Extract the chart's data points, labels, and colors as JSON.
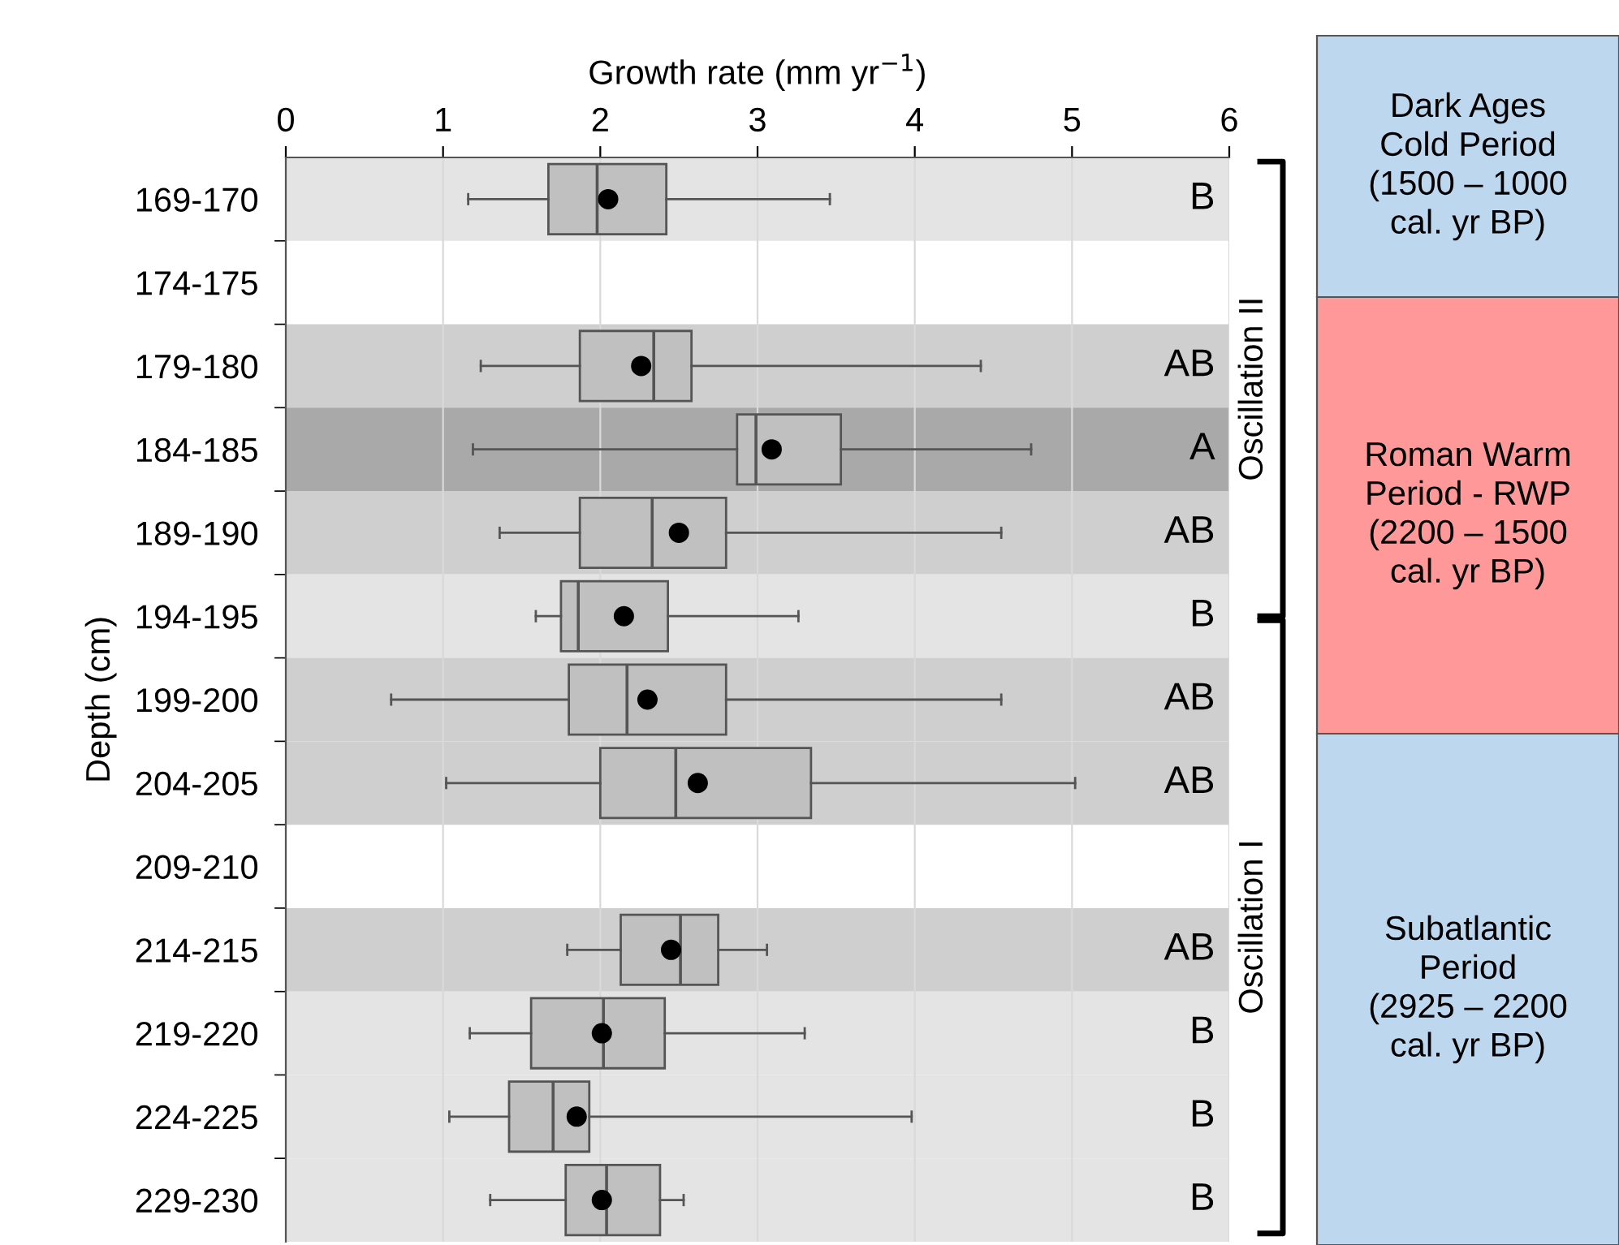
{
  "chart_data": {
    "type": "box",
    "xlabel": "Growth rate (mm yr$^{−1}$)",
    "ylabel": "Depth (cm)",
    "orientation": "horizontal",
    "categories": [
      "169-170",
      "174-175",
      "179-180",
      "184-185",
      "189-190",
      "194-195",
      "199-200",
      "204-205",
      "209-210",
      "214-215",
      "219-220",
      "224-225",
      "229-230"
    ],
    "xlim": [
      0,
      6
    ],
    "xticks": [
      0,
      1,
      2,
      3,
      4,
      5,
      6
    ],
    "grid": "x",
    "marker": "circle",
    "boxes": [
      {
        "low": 1.16,
        "q1": 1.67,
        "median": 1.98,
        "q3": 2.42,
        "high": 3.46,
        "mean": 2.05
      },
      null,
      {
        "low": 1.24,
        "q1": 1.87,
        "median": 2.34,
        "q3": 2.58,
        "high": 4.42,
        "mean": 2.26
      },
      {
        "low": 1.19,
        "q1": 2.87,
        "median": 2.99,
        "q3": 3.53,
        "high": 4.74,
        "mean": 3.09
      },
      {
        "low": 1.36,
        "q1": 1.87,
        "median": 2.33,
        "q3": 2.8,
        "high": 4.55,
        "mean": 2.5
      },
      {
        "low": 1.59,
        "q1": 1.75,
        "median": 1.86,
        "q3": 2.43,
        "high": 3.26,
        "mean": 2.15
      },
      {
        "low": 0.67,
        "q1": 1.8,
        "median": 2.17,
        "q3": 2.8,
        "high": 4.55,
        "mean": 2.3
      },
      {
        "low": 1.02,
        "q1": 2.0,
        "median": 2.48,
        "q3": 3.34,
        "high": 5.02,
        "mean": 2.62
      },
      null,
      {
        "low": 1.79,
        "q1": 2.13,
        "median": 2.51,
        "q3": 2.75,
        "high": 3.06,
        "mean": 2.45
      },
      {
        "low": 1.17,
        "q1": 1.56,
        "median": 2.02,
        "q3": 2.41,
        "high": 3.3,
        "mean": 2.01
      },
      {
        "low": 1.04,
        "q1": 1.42,
        "median": 1.7,
        "q3": 1.93,
        "high": 3.98,
        "mean": 1.85
      },
      {
        "low": 1.3,
        "q1": 1.78,
        "median": 2.04,
        "q3": 2.38,
        "high": 2.53,
        "mean": 2.01
      }
    ],
    "bands": [
      {
        "axis": "y",
        "from": "169-170",
        "to": "169-170",
        "label": "B",
        "color": "#e5e4e5"
      },
      {
        "axis": "y",
        "from": "179-180",
        "to": "179-180",
        "label": "AB",
        "color": "#d0cfd0"
      },
      {
        "axis": "y",
        "from": "184-185",
        "to": "184-185",
        "label": "A",
        "color": "#a9a9a9"
      },
      {
        "axis": "y",
        "from": "189-190",
        "to": "189-190",
        "label": "AB",
        "color": "#d0cfd0"
      },
      {
        "axis": "y",
        "from": "194-195",
        "to": "194-195",
        "label": "B",
        "color": "#e5e4e5"
      },
      {
        "axis": "y",
        "from": "199-200",
        "to": "199-200",
        "label": "AB",
        "color": "#d0cfd0"
      },
      {
        "axis": "y",
        "from": "204-205",
        "to": "204-205",
        "label": "AB",
        "color": "#d0cfd0"
      },
      {
        "axis": "y",
        "from": "214-215",
        "to": "214-215",
        "label": "AB",
        "color": "#d0cfd0"
      },
      {
        "axis": "y",
        "from": "219-220",
        "to": "219-220",
        "label": "B",
        "color": "#e5e4e5"
      },
      {
        "axis": "y",
        "from": "224-225",
        "to": "224-225",
        "label": "B",
        "color": "#e5e4e5"
      },
      {
        "axis": "y",
        "from": "229-230",
        "to": "229-230",
        "label": "B",
        "color": "#e5e4e5"
      }
    ],
    "annotations": [
      "Oscillation II",
      "Oscillation I",
      "Dark Ages\nCold Period\n(1500 – 1000\ncal. yr BP)",
      "Roman Warm\nPeriod - RWP\n(2200 – 1500\ncal. yr BP)",
      "Subatlantic\nPeriod\n(2925 – 2200\ncal. yr BP)"
    ]
  }
}
